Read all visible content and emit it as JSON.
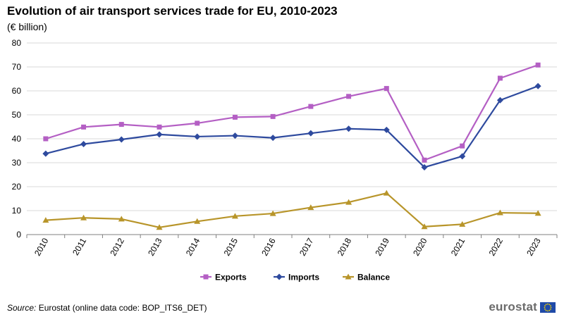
{
  "chart_data": {
    "type": "line",
    "title": "Evolution of air transport services trade for EU, 2010-2023",
    "subtitle": "(€ billion)",
    "categories": [
      "2010",
      "2011",
      "2012",
      "2013",
      "2014",
      "2015",
      "2016",
      "2017",
      "2018",
      "2019",
      "2020",
      "2021",
      "2022",
      "2023"
    ],
    "ylim": [
      0,
      80
    ],
    "yticks": [
      0,
      10,
      20,
      30,
      40,
      50,
      60,
      70,
      80
    ],
    "xlabel": "",
    "ylabel": "",
    "grid": true,
    "legend_position": "bottom",
    "series": [
      {
        "name": "Exports",
        "color": "#b45fc4",
        "marker": "square",
        "values": [
          40.0,
          44.9,
          46.0,
          44.9,
          46.5,
          49.0,
          49.3,
          53.5,
          57.7,
          61.0,
          31.1,
          37.0,
          65.3,
          70.8
        ]
      },
      {
        "name": "Imports",
        "color": "#2e4a9e",
        "marker": "diamond",
        "values": [
          33.8,
          37.8,
          39.7,
          41.8,
          40.9,
          41.3,
          40.4,
          42.3,
          44.2,
          43.7,
          28.1,
          32.7,
          56.1,
          62.0
        ]
      },
      {
        "name": "Balance",
        "color": "#b8952a",
        "marker": "triangle",
        "values": [
          6.0,
          7.0,
          6.5,
          3.0,
          5.5,
          7.7,
          8.8,
          11.3,
          13.5,
          17.3,
          3.3,
          4.3,
          9.1,
          8.9
        ]
      }
    ]
  },
  "footer": {
    "source_label": "Source:",
    "source_text": " Eurostat (online data code: BOP_ITS6_DET)",
    "logo_text": "eurostat"
  }
}
